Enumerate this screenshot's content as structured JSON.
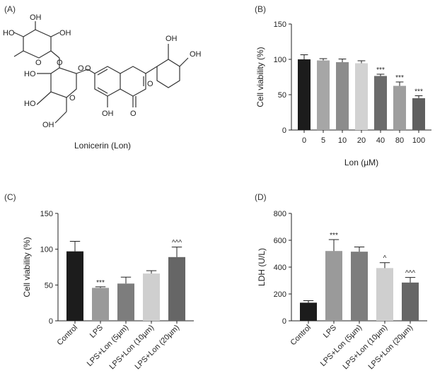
{
  "panels": [
    {
      "label": "(A)"
    },
    {
      "label": "(B)"
    },
    {
      "label": "(C)"
    },
    {
      "label": "(D)"
    }
  ],
  "structure": {
    "caption": "Lonicerin (Lon)",
    "atoms": [
      "OH",
      "HO",
      "OH",
      "O",
      "O",
      "OH",
      "OH",
      "HO",
      "O",
      "O",
      "O",
      "OH",
      "HO",
      "O",
      "OH",
      "O"
    ]
  },
  "chart_data": [
    {
      "panel": "(B)",
      "type": "bar",
      "xlabel": "Lon (µM)",
      "ylabel": "Cell viability (%)",
      "ylim": [
        0,
        150
      ],
      "yticks": [
        0,
        50,
        100,
        150
      ],
      "categories": [
        "0",
        "5",
        "10",
        "20",
        "40",
        "80",
        "100"
      ],
      "values": [
        100,
        98.5,
        96,
        94.5,
        76.5,
        62.5,
        45
      ],
      "errors": [
        6.5,
        2.5,
        4.5,
        3.5,
        2.5,
        5.5,
        3.5
      ],
      "annotations": [
        "",
        "",
        "",
        "",
        "***",
        "***",
        "***"
      ],
      "colors": [
        "#1c1c1c",
        "#a6a6a6",
        "#8c8c8c",
        "#d2d2d2",
        "#6b6b6b",
        "#9e9e9e",
        "#5f5f5f"
      ]
    },
    {
      "panel": "(C)",
      "type": "bar",
      "xlabel": "",
      "ylabel": "Cell viability (%)",
      "ylim": [
        0,
        150
      ],
      "yticks": [
        0,
        50,
        100,
        150
      ],
      "categories": [
        "Control",
        "LPS",
        "LPS+Lon (5µm)",
        "LPS+Lon (10µm)",
        "LPS+Lon (20µm)"
      ],
      "values": [
        97,
        46,
        52,
        66,
        89
      ],
      "errors": [
        14,
        1.5,
        9,
        4,
        14
      ],
      "annotations": [
        "",
        "***",
        "",
        "",
        "^^^"
      ],
      "colors": [
        "#1c1c1c",
        "#9a9a9a",
        "#7d7d7d",
        "#cfcfcf",
        "#666666"
      ]
    },
    {
      "panel": "(D)",
      "type": "bar",
      "xlabel": "",
      "ylabel": "LDH (U/L)",
      "ylim": [
        0,
        800
      ],
      "yticks": [
        0,
        200,
        400,
        600,
        800
      ],
      "categories": [
        "Control",
        "LPS",
        "LPS+Lon (5µm)",
        "LPS+Lon (10µm)",
        "LPS+Lon (20µm)"
      ],
      "values": [
        135,
        520,
        515,
        393,
        285
      ],
      "errors": [
        15,
        85,
        35,
        40,
        38
      ],
      "annotations": [
        "",
        "***",
        "",
        "^",
        "^^^"
      ],
      "colors": [
        "#1c1c1c",
        "#9a9a9a",
        "#7d7d7d",
        "#cfcfcf",
        "#666666"
      ]
    }
  ]
}
